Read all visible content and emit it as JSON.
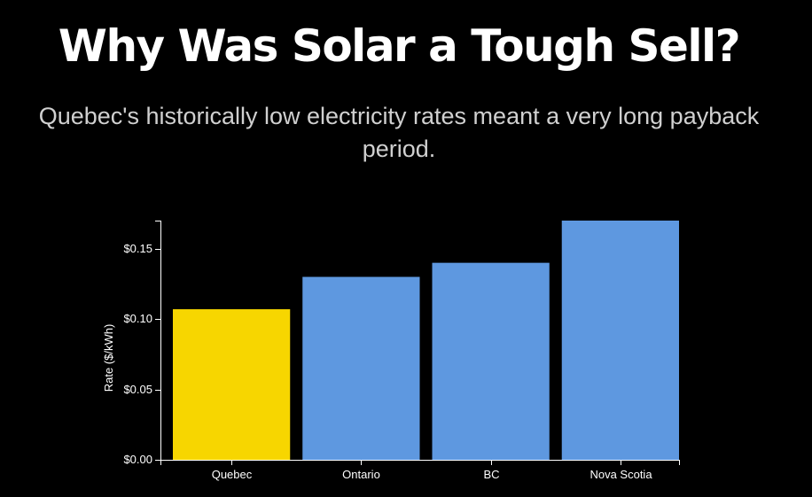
{
  "header": {
    "title": "Why Was Solar a Tough Sell?",
    "subtitle": "Quebec's historically low electricity rates meant a very long payback period."
  },
  "colors": {
    "background": "#000000",
    "highlight": "#f7d600",
    "default_bar": "#5e98e0",
    "axis": "#ffffff",
    "subtitle_text": "#d0d0d0"
  },
  "chart_data": {
    "type": "bar",
    "title": "",
    "xlabel": "",
    "ylabel": "Rate ($/kWh)",
    "categories": [
      "Quebec",
      "Ontario",
      "BC",
      "Nova Scotia"
    ],
    "values": [
      0.107,
      0.13,
      0.14,
      0.17
    ],
    "highlight": [
      "Quebec"
    ],
    "ylim": [
      0,
      0.17
    ],
    "yticks": [
      0,
      0.05,
      0.1,
      0.15
    ],
    "ytick_labels": [
      "$0.00",
      "$0.05",
      "$0.10",
      "$0.15"
    ],
    "grid": false
  }
}
